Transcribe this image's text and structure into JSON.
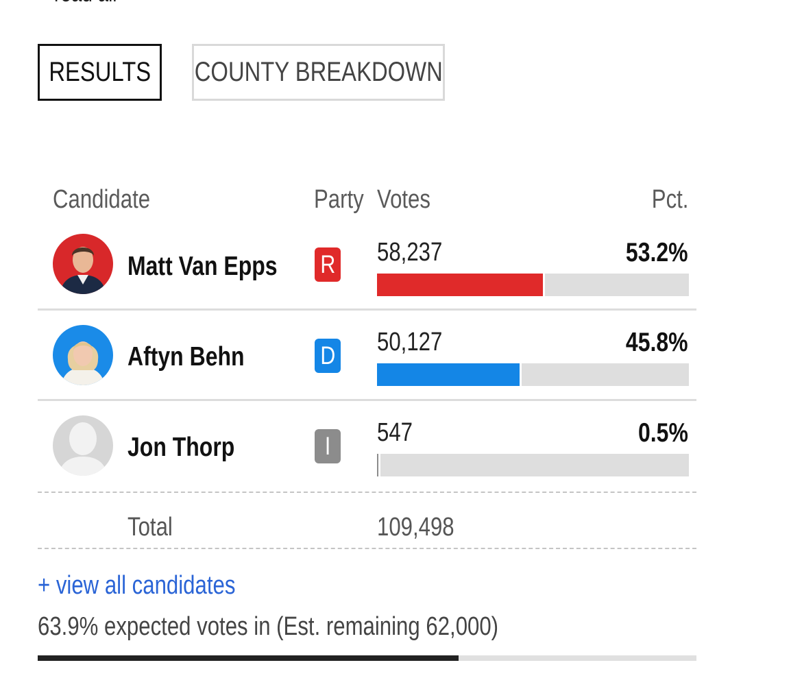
{
  "top_link": "+ read all",
  "tabs": [
    {
      "label": "RESULTS",
      "active": true
    },
    {
      "label": "COUNTY BREAKDOWN",
      "active": false
    }
  ],
  "table": {
    "headers": {
      "candidate": "Candidate",
      "party": "Party",
      "votes": "Votes",
      "pct": "Pct."
    },
    "rows": [
      {
        "name": "Matt Van Epps",
        "party": "R",
        "party_color": "#e02a2a",
        "votes": "58,237",
        "pct": "53.2%",
        "share": 53.2,
        "photo": "candidate-photo"
      },
      {
        "name": "Aftyn Behn",
        "party": "D",
        "party_color": "#1486e6",
        "votes": "50,127",
        "pct": "45.8%",
        "share": 45.8,
        "photo": "candidate-photo"
      },
      {
        "name": "Jon Thorp",
        "party": "I",
        "party_color": "#8c8c8c",
        "votes": "547",
        "pct": "0.5%",
        "share": 0.5,
        "photo": "placeholder-avatar"
      }
    ],
    "total_label": "Total",
    "total_votes": "109,498"
  },
  "view_all_label": "+ view all candidates",
  "expected_text": "63.9% expected votes in (Est. remaining 62,000)",
  "expected_share": 63.9,
  "colors": {
    "republican": "#e02a2a",
    "democrat": "#1486e6",
    "independent": "#8c8c8c",
    "track": "#dedede"
  }
}
